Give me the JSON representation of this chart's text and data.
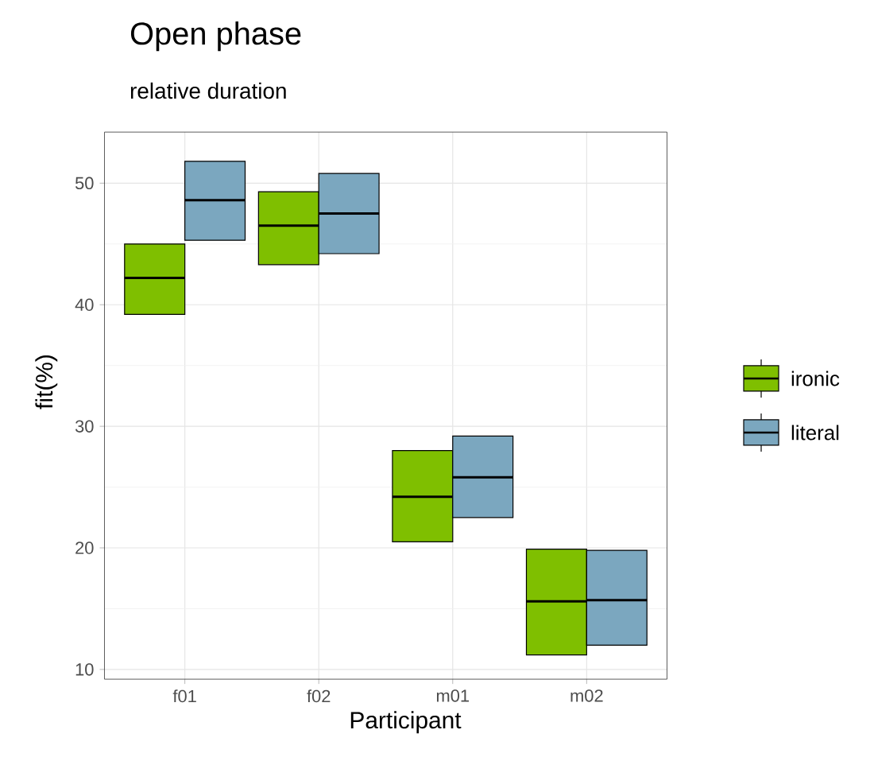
{
  "chart_data": {
    "type": "box",
    "title": "Open phase",
    "subtitle": "relative duration",
    "xlabel": "Participant",
    "ylabel": "fit(%)",
    "categories": [
      "f01",
      "f02",
      "m01",
      "m02"
    ],
    "series": [
      {
        "name": "ironic",
        "color": "#7fbf00",
        "boxes": [
          {
            "low": 39.2,
            "q1": 39.2,
            "median": 42.2,
            "q3": 45.0,
            "high": 45.0
          },
          {
            "low": 43.3,
            "q1": 43.3,
            "median": 46.5,
            "q3": 49.3,
            "high": 49.3
          },
          {
            "low": 20.5,
            "q1": 20.5,
            "median": 24.2,
            "q3": 28.0,
            "high": 28.0
          },
          {
            "low": 11.2,
            "q1": 11.2,
            "median": 15.6,
            "q3": 19.9,
            "high": 19.9
          }
        ]
      },
      {
        "name": "literal",
        "color": "#7ba7bf",
        "boxes": [
          {
            "low": 45.3,
            "q1": 45.3,
            "median": 48.6,
            "q3": 51.8,
            "high": 51.8
          },
          {
            "low": 44.2,
            "q1": 44.2,
            "median": 47.5,
            "q3": 50.8,
            "high": 50.8
          },
          {
            "low": 22.5,
            "q1": 22.5,
            "median": 25.8,
            "q3": 29.2,
            "high": 29.2
          },
          {
            "low": 12.0,
            "q1": 12.0,
            "median": 15.7,
            "q3": 19.8,
            "high": 19.8
          }
        ]
      }
    ],
    "ylim": [
      9.2,
      54.2
    ],
    "yticks": [
      10,
      20,
      30,
      40,
      50
    ],
    "grid": true,
    "legend": "right"
  }
}
